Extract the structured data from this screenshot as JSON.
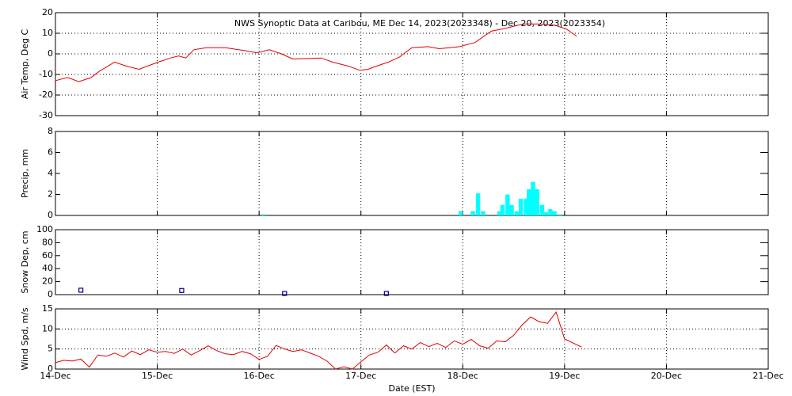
{
  "chart_data": [
    {
      "type": "line",
      "title": "NWS Synoptic Data at Caribou, ME   Dec 14, 2023(2023348) - Dec 20, 2023(2023354)",
      "y_label": "Air Temp, Deg C",
      "color": "#e00000",
      "x": [
        0,
        0.12,
        0.23,
        0.35,
        0.43,
        0.58,
        0.7,
        0.82,
        1.01,
        1.13,
        1.21,
        1.28,
        1.36,
        1.48,
        1.67,
        1.87,
        1.98,
        2.1,
        2.22,
        2.33,
        2.61,
        2.72,
        2.88,
        2.99,
        3.07,
        3.15,
        3.27,
        3.38,
        3.5,
        3.66,
        3.77,
        3.97,
        4.12,
        4.28,
        4.43,
        4.59,
        4.74,
        4.9,
        5.02,
        5.12
      ],
      "values": [
        -13,
        -11.5,
        -13.5,
        -11.5,
        -8.5,
        -4,
        -6,
        -7.5,
        -4,
        -2,
        -1,
        -2,
        2,
        3,
        3,
        1.5,
        0.5,
        2,
        0,
        -2.5,
        -2,
        -4,
        -6,
        -8,
        -7.5,
        -6,
        -4,
        -1.5,
        3,
        3.5,
        2.5,
        3.5,
        5.5,
        11,
        12.5,
        14.5,
        14.5,
        14,
        12,
        8.5
      ],
      "xlim": [
        0,
        7
      ],
      "ylim": [
        -30,
        20
      ],
      "yticks": [
        -30,
        -20,
        -10,
        0,
        10,
        20
      ],
      "ygrid": true
    },
    {
      "type": "bar",
      "y_label": "Precip, mm",
      "color": "#00ffff",
      "x": [
        2.04,
        3.98,
        4.1,
        4.15,
        4.2,
        4.36,
        4.39,
        4.44,
        4.48,
        4.53,
        4.57,
        4.62,
        4.65,
        4.69,
        4.73,
        4.78,
        4.82,
        4.86,
        4.9,
        4.95
      ],
      "values": [
        0.1,
        0.4,
        0.4,
        2.1,
        0.4,
        0.4,
        1.0,
        2.0,
        1.0,
        0.4,
        1.6,
        1.6,
        2.5,
        3.2,
        2.5,
        1.0,
        0.3,
        0.6,
        0.4,
        0.1
      ],
      "xlim": [
        0,
        7
      ],
      "ylim": [
        0,
        8
      ],
      "yticks": [
        0,
        2,
        4,
        6,
        8
      ],
      "ygrid": false
    },
    {
      "type": "scatter",
      "y_label": "Snow Dep, cm",
      "color": "#000080",
      "x": [
        0.25,
        1.24,
        2.25,
        3.25
      ],
      "values": [
        5,
        4.5,
        0,
        0
      ],
      "xlim": [
        0,
        7
      ],
      "ylim": [
        0,
        100
      ],
      "yticks": [
        0,
        20,
        40,
        60,
        80,
        100
      ],
      "ygrid": false
    },
    {
      "type": "line",
      "y_label": "Wind Spd, m/s",
      "x_label": "Date (EST)",
      "color": "#e00000",
      "x": [
        0,
        0.083,
        0.167,
        0.25,
        0.333,
        0.417,
        0.5,
        0.583,
        0.667,
        0.75,
        0.833,
        0.917,
        1,
        1.083,
        1.167,
        1.25,
        1.333,
        1.417,
        1.5,
        1.583,
        1.667,
        1.75,
        1.833,
        1.917,
        2,
        2.083,
        2.167,
        2.25,
        2.333,
        2.417,
        2.5,
        2.583,
        2.667,
        2.75,
        2.833,
        2.917,
        3,
        3.083,
        3.167,
        3.25,
        3.333,
        3.417,
        3.5,
        3.583,
        3.667,
        3.75,
        3.833,
        3.917,
        4,
        4.083,
        4.167,
        4.25,
        4.333,
        4.417,
        4.5,
        4.583,
        4.667,
        4.75,
        4.833,
        4.917,
        5,
        5.083,
        5.167
      ],
      "values": [
        1.6,
        2.2,
        2.0,
        2.5,
        0.5,
        3.5,
        3.2,
        4.0,
        3.0,
        4.5,
        3.6,
        4.8,
        4.2,
        4.4,
        3.9,
        5.0,
        3.5,
        4.6,
        5.8,
        4.6,
        3.8,
        3.6,
        4.4,
        3.8,
        2.4,
        3.2,
        5.9,
        5.0,
        4.4,
        4.8,
        4.0,
        3.2,
        2.0,
        0,
        0.6,
        0,
        1.8,
        3.5,
        4.2,
        6.0,
        4.0,
        5.8,
        5.0,
        6.6,
        5.6,
        6.4,
        5.4,
        7.0,
        6.2,
        7.4,
        5.8,
        5.2,
        7.0,
        6.8,
        8.4,
        11.0,
        13.0,
        11.8,
        11.4,
        14.2,
        7.5,
        6.5,
        5.5
      ],
      "xlim": [
        0,
        7
      ],
      "ylim": [
        0,
        15
      ],
      "yticks": [
        0,
        5,
        10,
        15
      ],
      "ygrid": true,
      "xticks": [
        {
          "value": 0,
          "label": "14-Dec"
        },
        {
          "value": 1,
          "label": "15-Dec"
        },
        {
          "value": 2,
          "label": "16-Dec"
        },
        {
          "value": 3,
          "label": "17-Dec"
        },
        {
          "value": 4,
          "label": "18-Dec"
        },
        {
          "value": 5,
          "label": "19-Dec"
        },
        {
          "value": 6,
          "label": "20-Dec"
        },
        {
          "value": 7,
          "label": "21-Dec"
        }
      ]
    }
  ]
}
